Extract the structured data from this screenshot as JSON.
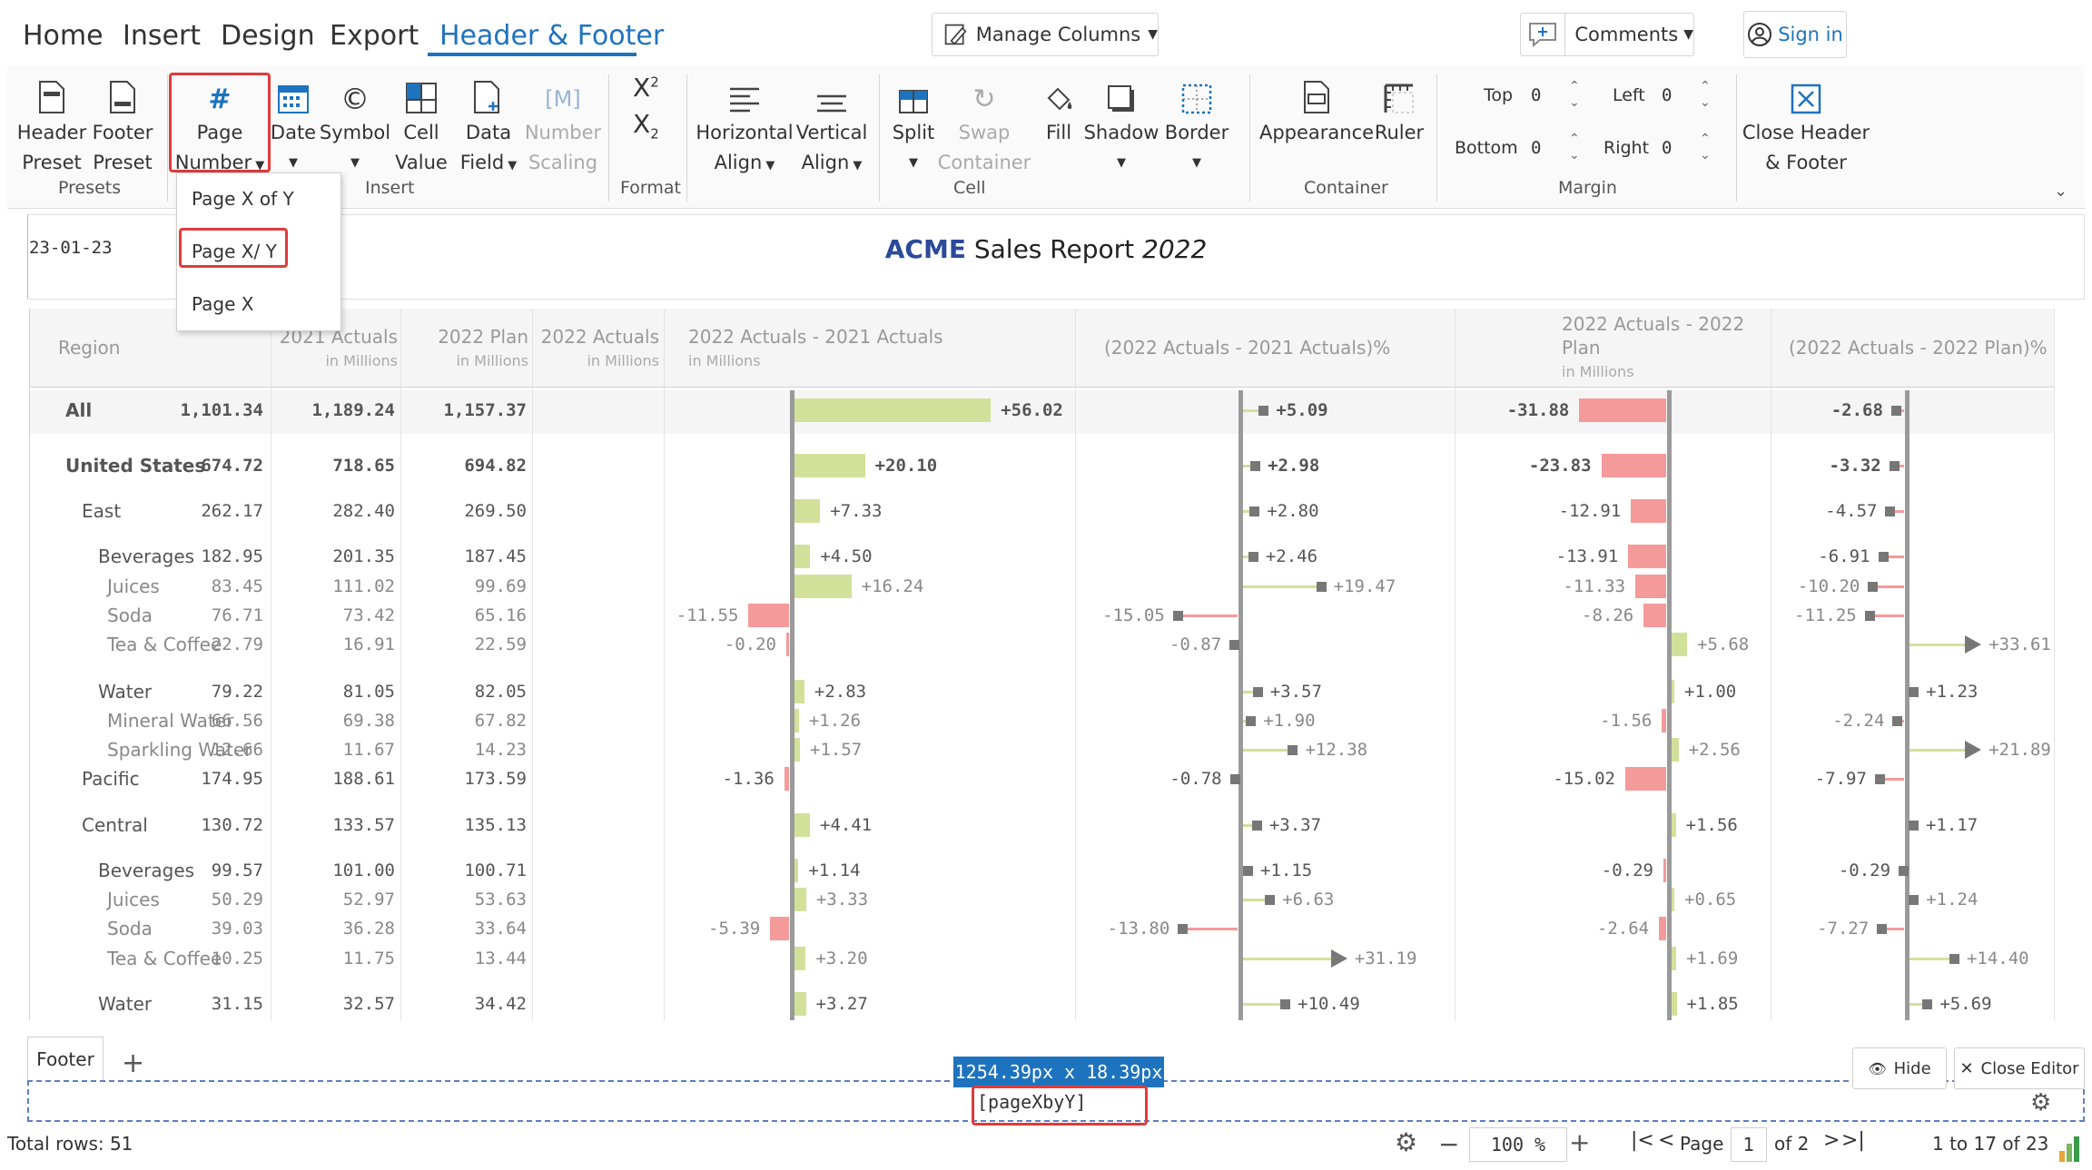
{
  "menu": {
    "tabs": [
      "Home",
      "Insert",
      "Design",
      "Export",
      "Header & Footer"
    ],
    "active": "Header & Footer"
  },
  "topbar": {
    "manage_columns": "Manage Columns",
    "comments": "Comments",
    "sign_in": "Sign in"
  },
  "ribbon": {
    "presets": {
      "label": "Presets",
      "header_preset": [
        "Header",
        "Preset"
      ],
      "footer_preset": [
        "Footer",
        "Preset"
      ]
    },
    "insert": {
      "label": "Insert",
      "page_number": [
        "Page",
        "Number"
      ],
      "date": "Date",
      "symbol": "Symbol",
      "cell_value": [
        "Cell",
        "Value"
      ],
      "data_field": [
        "Data",
        "Field"
      ],
      "number_scaling": [
        "Number",
        "Scaling"
      ]
    },
    "format": {
      "label": "Format"
    },
    "cell": {
      "label": "Cell",
      "horizontal_align": [
        "Horizontal",
        "Align"
      ],
      "vertical_align": [
        "Vertical",
        "Align"
      ],
      "split": "Split",
      "swap_container": [
        "Swap",
        "Container"
      ],
      "fill": "Fill",
      "shadow": "Shadow",
      "border": "Border"
    },
    "container": {
      "label": "Container",
      "appearance": "Appearance",
      "ruler": "Ruler"
    },
    "margin": {
      "label": "Margin",
      "top_label": "Top",
      "top_value": "0",
      "left_label": "Left",
      "left_value": "0",
      "bottom_label": "Bottom",
      "bottom_value": "0",
      "right_label": "Right",
      "right_value": "0"
    },
    "close": [
      "Close Header",
      "& Footer"
    ]
  },
  "dropdown": {
    "items": [
      "Page X of Y",
      "Page X/ Y",
      "Page X"
    ],
    "highlighted": 1
  },
  "header": {
    "date": "23-01-23",
    "title_brand": "ACME",
    "title_main": " Sales Report ",
    "title_year": "2022"
  },
  "table": {
    "columns": [
      {
        "title": "Region",
        "sub": ""
      },
      {
        "title": "2021 Actuals",
        "sub": "in Millions"
      },
      {
        "title": "2022 Plan",
        "sub": "in Millions"
      },
      {
        "title": "2022 Actuals",
        "sub": "in Millions"
      },
      {
        "title": "2022 Actuals - 2021 Actuals",
        "sub": "in Millions"
      },
      {
        "title": "(2022 Actuals - 2021 Actuals)%",
        "sub": ""
      },
      {
        "title": "2022 Actuals - 2022",
        "title2": "Plan",
        "sub": "in Millions"
      },
      {
        "title": "(2022 Actuals - 2022 Plan)%",
        "sub": ""
      }
    ],
    "rows": [
      {
        "label": "All",
        "level": 0,
        "bold": true,
        "c1": "1,101.34",
        "c2": "1,189.24",
        "c3": "1,157.37",
        "d1": 56.02,
        "d1l": "+56.02",
        "p1": 5.09,
        "p1l": "+5.09",
        "d2": -31.88,
        "d2l": "-31.88",
        "p2": -2.68,
        "p2l": "-2.68"
      },
      {
        "label": "United States",
        "level": 1,
        "bold": true,
        "c1": "674.72",
        "c2": "718.65",
        "c3": "694.82",
        "d1": 20.1,
        "d1l": "+20.10",
        "p1": 2.98,
        "p1l": "+2.98",
        "d2": -23.83,
        "d2l": "-23.83",
        "p2": -3.32,
        "p2l": "-3.32"
      },
      {
        "label": "East",
        "level": 2,
        "bold": false,
        "c1": "262.17",
        "c2": "282.40",
        "c3": "269.50",
        "d1": 7.33,
        "d1l": "+7.33",
        "p1": 2.8,
        "p1l": "+2.80",
        "d2": -12.91,
        "d2l": "-12.91",
        "p2": -4.57,
        "p2l": "-4.57"
      },
      {
        "label": "Beverages",
        "level": 3,
        "bold": false,
        "c1": "182.95",
        "c2": "201.35",
        "c3": "187.45",
        "d1": 4.5,
        "d1l": "+4.50",
        "p1": 2.46,
        "p1l": "+2.46",
        "d2": -13.91,
        "d2l": "-13.91",
        "p2": -6.91,
        "p2l": "-6.91"
      },
      {
        "label": "Juices",
        "level": 4,
        "bold": false,
        "c1": "83.45",
        "c2": "111.02",
        "c3": "99.69",
        "d1": 16.24,
        "d1l": "+16.24",
        "p1": 19.47,
        "p1l": "+19.47",
        "d2": -11.33,
        "d2l": "-11.33",
        "p2": -10.2,
        "p2l": "-10.20"
      },
      {
        "label": "Soda",
        "level": 4,
        "bold": false,
        "c1": "76.71",
        "c2": "73.42",
        "c3": "65.16",
        "d1": -11.55,
        "d1l": "-11.55",
        "p1": -15.05,
        "p1l": "-15.05",
        "d2": -8.26,
        "d2l": "-8.26",
        "p2": -11.25,
        "p2l": "-11.25"
      },
      {
        "label": "Tea & Coffee",
        "level": 4,
        "bold": false,
        "c1": "22.79",
        "c2": "16.91",
        "c3": "22.59",
        "d1": -0.2,
        "d1l": "-0.20",
        "p1": -0.87,
        "p1l": "-0.87",
        "d2": 5.68,
        "d2l": "+5.68",
        "p2": 33.61,
        "p2l": "+33.61"
      },
      {
        "label": "Water",
        "level": 3,
        "bold": false,
        "c1": "79.22",
        "c2": "81.05",
        "c3": "82.05",
        "d1": 2.83,
        "d1l": "+2.83",
        "p1": 3.57,
        "p1l": "+3.57",
        "d2": 1.0,
        "d2l": "+1.00",
        "p2": 1.23,
        "p2l": "+1.23"
      },
      {
        "label": "Mineral Water",
        "level": 4,
        "bold": false,
        "c1": "66.56",
        "c2": "69.38",
        "c3": "67.82",
        "d1": 1.26,
        "d1l": "+1.26",
        "p1": 1.9,
        "p1l": "+1.90",
        "d2": -1.56,
        "d2l": "-1.56",
        "p2": -2.24,
        "p2l": "-2.24"
      },
      {
        "label": "Sparkling Water",
        "level": 4,
        "bold": false,
        "c1": "12.66",
        "c2": "11.67",
        "c3": "14.23",
        "d1": 1.57,
        "d1l": "+1.57",
        "p1": 12.38,
        "p1l": "+12.38",
        "d2": 2.56,
        "d2l": "+2.56",
        "p2": 21.89,
        "p2l": "+21.89"
      },
      {
        "label": "Pacific",
        "level": 2,
        "bold": false,
        "c1": "174.95",
        "c2": "188.61",
        "c3": "173.59",
        "d1": -1.36,
        "d1l": "-1.36",
        "p1": -0.78,
        "p1l": "-0.78",
        "d2": -15.02,
        "d2l": "-15.02",
        "p2": -7.97,
        "p2l": "-7.97"
      },
      {
        "label": "Central",
        "level": 2,
        "bold": false,
        "c1": "130.72",
        "c2": "133.57",
        "c3": "135.13",
        "d1": 4.41,
        "d1l": "+4.41",
        "p1": 3.37,
        "p1l": "+3.37",
        "d2": 1.56,
        "d2l": "+1.56",
        "p2": 1.17,
        "p2l": "+1.17"
      },
      {
        "label": "Beverages",
        "level": 3,
        "bold": false,
        "c1": "99.57",
        "c2": "101.00",
        "c3": "100.71",
        "d1": 1.14,
        "d1l": "+1.14",
        "p1": 1.15,
        "p1l": "+1.15",
        "d2": -0.29,
        "d2l": "-0.29",
        "p2": -0.29,
        "p2l": "-0.29"
      },
      {
        "label": "Juices",
        "level": 4,
        "bold": false,
        "c1": "50.29",
        "c2": "52.97",
        "c3": "53.63",
        "d1": 3.33,
        "d1l": "+3.33",
        "p1": 6.63,
        "p1l": "+6.63",
        "d2": 0.65,
        "d2l": "+0.65",
        "p2": 1.24,
        "p2l": "+1.24"
      },
      {
        "label": "Soda",
        "level": 4,
        "bold": false,
        "c1": "39.03",
        "c2": "36.28",
        "c3": "33.64",
        "d1": -5.39,
        "d1l": "-5.39",
        "p1": -13.8,
        "p1l": "-13.80",
        "d2": -2.64,
        "d2l": "-2.64",
        "p2": -7.27,
        "p2l": "-7.27"
      },
      {
        "label": "Tea & Coffee",
        "level": 4,
        "bold": false,
        "c1": "10.25",
        "c2": "11.75",
        "c3": "13.44",
        "d1": 3.2,
        "d1l": "+3.20",
        "p1": 31.19,
        "p1l": "+31.19",
        "d2": 1.69,
        "d2l": "+1.69",
        "p2": 14.4,
        "p2l": "+14.40"
      },
      {
        "label": "Water",
        "level": 3,
        "bold": false,
        "c1": "31.15",
        "c2": "32.57",
        "c3": "34.42",
        "d1": 3.27,
        "d1l": "+3.27",
        "p1": 10.49,
        "p1l": "+10.49",
        "d2": 1.85,
        "d2l": "+1.85",
        "p2": 5.69,
        "p2l": "+5.69"
      }
    ]
  },
  "footer_editor": {
    "tab": "Footer",
    "add": "+",
    "size_badge": "1254.39px x 18.39px",
    "token": "[pageXbyY]",
    "hide": "Hide",
    "close_editor": "Close Editor"
  },
  "status": {
    "total_rows": "Total rows: 51",
    "zoom": "100 %",
    "page_label": "Page",
    "page_value": "1",
    "page_of": "of 2",
    "range": "1 to 17 of 23"
  },
  "colors": {
    "accent": "#1e73be",
    "positive": "#d2e19a",
    "negative": "#f59a9a",
    "highlight": "#e03b3b"
  }
}
